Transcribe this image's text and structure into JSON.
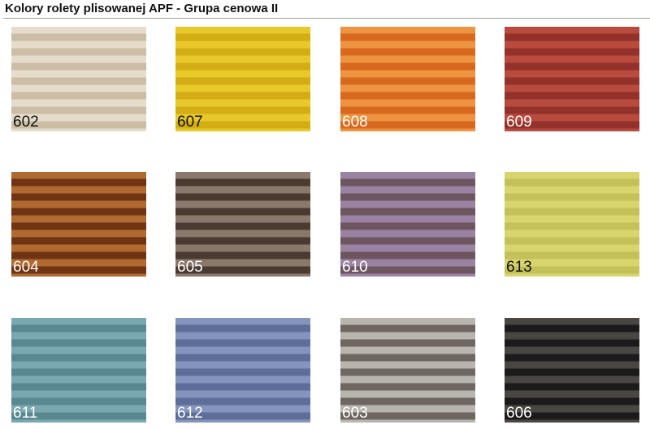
{
  "title": "Kolory rolety plisowanej APF - Grupa cenowa II",
  "swatches": [
    {
      "code": "602",
      "light": "#e6dccb",
      "dark": "#cbbda6",
      "text": "#111111"
    },
    {
      "code": "607",
      "light": "#e8c82a",
      "dark": "#d2ad14",
      "text": "#111111"
    },
    {
      "code": "608",
      "light": "#ee9440",
      "dark": "#d8681e",
      "text": "#ffffff"
    },
    {
      "code": "609",
      "light": "#b84a3e",
      "dark": "#92322a",
      "text": "#ffffff"
    },
    {
      "code": "604",
      "light": "#b06a30",
      "dark": "#6e3414",
      "text": "#ffffff"
    },
    {
      "code": "605",
      "light": "#8a786c",
      "dark": "#4a3a32",
      "text": "#ffffff"
    },
    {
      "code": "610",
      "light": "#9a82a2",
      "dark": "#6e5660",
      "text": "#ffffff"
    },
    {
      "code": "613",
      "light": "#d8d46e",
      "dark": "#c4c05a",
      "text": "#111111"
    },
    {
      "code": "611",
      "light": "#7aa8b0",
      "dark": "#5a8890",
      "text": "#ffffff"
    },
    {
      "code": "612",
      "light": "#8494bc",
      "dark": "#5e6e98",
      "text": "#ffffff"
    },
    {
      "code": "603",
      "light": "#b8b4ae",
      "dark": "#6e6660",
      "text": "#ffffff"
    },
    {
      "code": "606",
      "light": "#4a4644",
      "dark": "#1c1a1a",
      "text": "#ffffff"
    }
  ]
}
